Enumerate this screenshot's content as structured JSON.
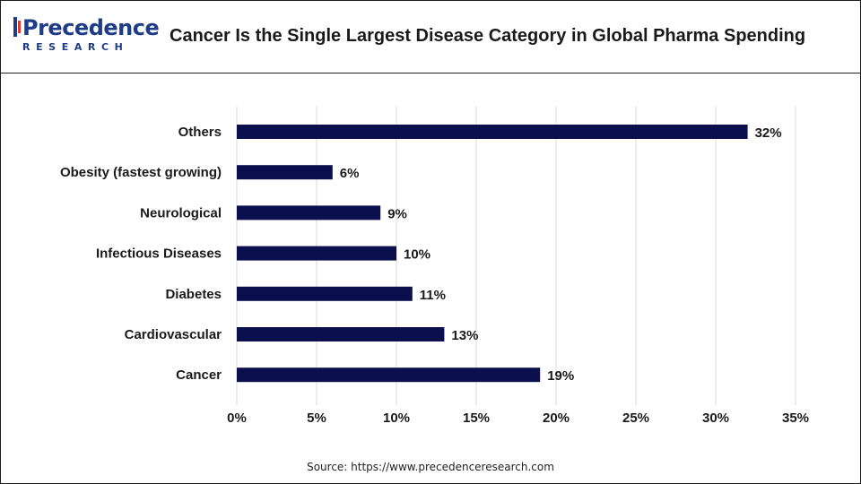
{
  "header": {
    "logo_word": "Precedence",
    "logo_sub": "RESEARCH",
    "title": "Cancer Is the Single Largest Disease Category in Global Pharma Spending"
  },
  "source": "Source: https://www.precedenceresearch.com",
  "colors": {
    "bar": "#0c0f4e",
    "grid": "#d9d9d9",
    "text": "#1a1a1a",
    "brand": "#1f3c88"
  },
  "chart_data": {
    "type": "bar",
    "orientation": "horizontal",
    "title": "Cancer Is the Single Largest Disease Category in Global Pharma Spending",
    "categories": [
      "Others",
      "Obesity (fastest growing)",
      "Neurological",
      "Infectious Diseases",
      "Diabetes",
      "Cardiovascular",
      "Cancer"
    ],
    "values": [
      32,
      6,
      9,
      10,
      11,
      13,
      19
    ],
    "value_labels": [
      "32%",
      "6%",
      "9%",
      "10%",
      "11%",
      "13%",
      "19%"
    ],
    "xlim": [
      0,
      35
    ],
    "xticks": [
      0,
      5,
      10,
      15,
      20,
      25,
      30,
      35
    ],
    "xtick_labels": [
      "0%",
      "5%",
      "10%",
      "15%",
      "20%",
      "25%",
      "30%",
      "35%"
    ],
    "xlabel": "",
    "ylabel": "",
    "grid": "vertical",
    "legend": "none"
  }
}
